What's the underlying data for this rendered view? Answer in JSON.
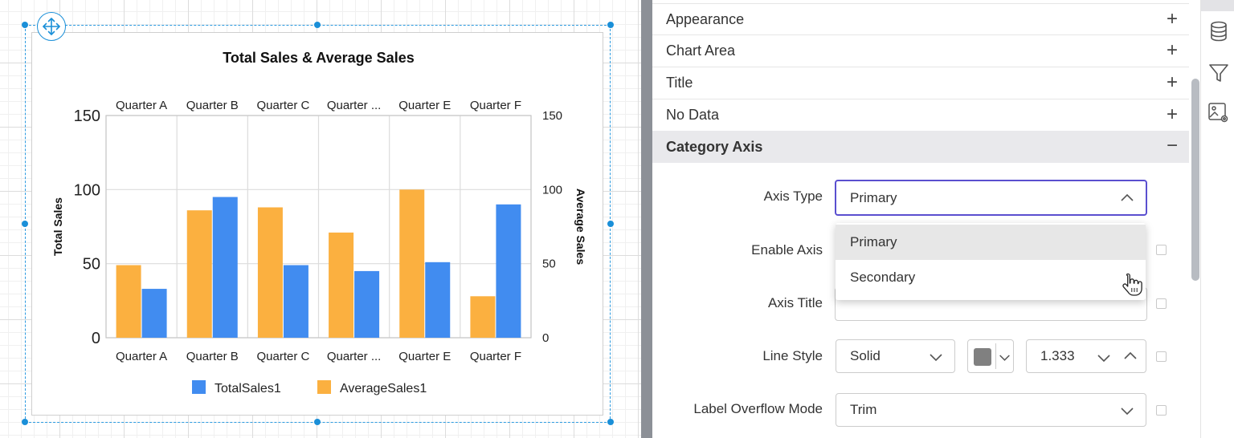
{
  "chart_data": {
    "type": "bar",
    "title": "Total Sales & Average Sales",
    "categories": [
      "Quarter A",
      "Quarter B",
      "Quarter C",
      "Quarter ...",
      "Quarter E",
      "Quarter F"
    ],
    "series": [
      {
        "name": "TotalSales1",
        "color": "#418cf0",
        "axis": "primary",
        "values": [
          33,
          95,
          49,
          45,
          51,
          90
        ]
      },
      {
        "name": "AverageSales1",
        "color": "#fbb040",
        "axis": "secondary",
        "values": [
          49,
          86,
          88,
          71,
          100,
          28
        ]
      }
    ],
    "series_draw_order": [
      "AverageSales1",
      "TotalSales1"
    ],
    "ylabel": "Total Sales",
    "y2label": "Average Sales",
    "ylim": [
      0,
      150
    ],
    "y2lim": [
      0,
      150
    ],
    "yticks": [
      0,
      50,
      100,
      150
    ],
    "y2ticks": [
      0,
      50,
      100,
      150
    ],
    "grid": true,
    "legend_position": "bottom-center"
  },
  "panel": {
    "sections": [
      {
        "label": "Appearance",
        "sign": "+"
      },
      {
        "label": "Chart Area",
        "sign": "+"
      },
      {
        "label": "Title",
        "sign": "+"
      },
      {
        "label": "No Data",
        "sign": "+"
      },
      {
        "label": "Category Axis",
        "sign": "−"
      }
    ],
    "axis_type": {
      "label": "Axis Type",
      "value": "Primary",
      "options": [
        "Primary",
        "Secondary"
      ]
    },
    "enable_axis": {
      "label": "Enable Axis"
    },
    "axis_title": {
      "label": "Axis Title",
      "value": ""
    },
    "line_style": {
      "label": "Line Style",
      "style": "Solid",
      "color": "#808080",
      "width": "1.333"
    },
    "label_overflow": {
      "label": "Label Overflow Mode",
      "value": "Trim"
    }
  },
  "colors": {
    "accent": "#5a4fcf",
    "selection": "#1a8fd8",
    "swatch": "#808080"
  },
  "icons": {
    "move": "move-arrows-icon",
    "database": "database-icon",
    "filter": "filter-icon",
    "image-settings": "image-settings-icon",
    "cursor": "hand-pointer-icon"
  }
}
